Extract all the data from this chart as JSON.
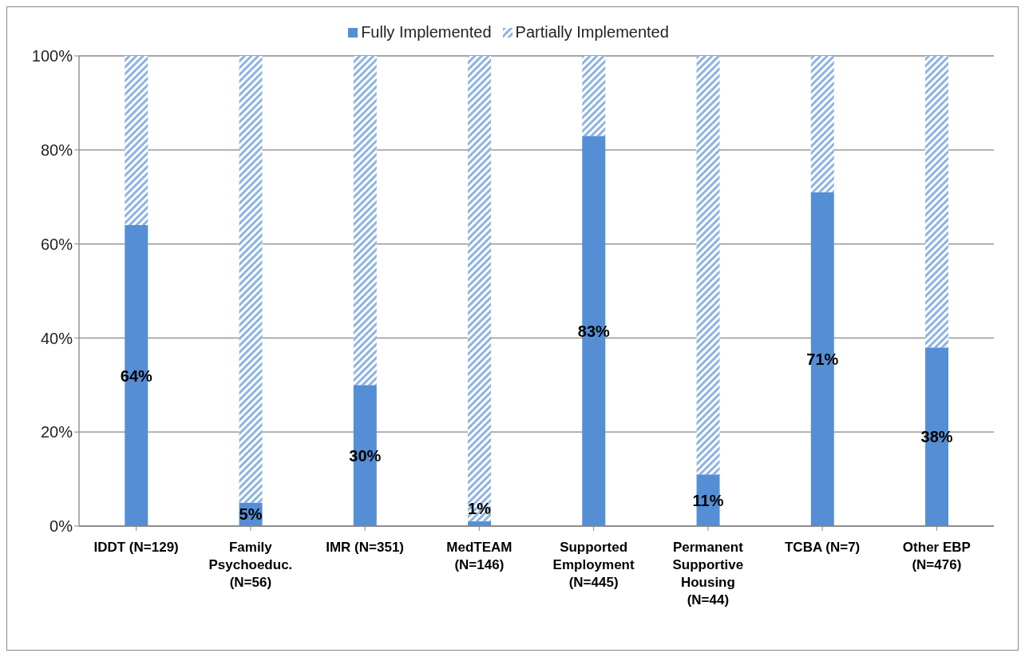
{
  "chart_data": {
    "type": "bar",
    "stacked": true,
    "categories": [
      "IDDT (N=129)",
      "Family Psychoeduc. (N=56)",
      "IMR (N=351)",
      "MedTEAM (N=146)",
      "Supported Employment (N=445)",
      "Permanent Supportive Housing (N=44)",
      "TCBA (N=7)",
      "Other EBP (N=476)"
    ],
    "series": [
      {
        "name": "Fully Implemented",
        "color": "#558ed5",
        "values": [
          64,
          5,
          30,
          1,
          83,
          11,
          71,
          38
        ],
        "value_labels": [
          "64%",
          "5%",
          "30%",
          "1%",
          "83%",
          "11%",
          "71%",
          "38%"
        ]
      },
      {
        "name": "Partially Implemented",
        "color": "#8db3e2",
        "values": [
          36,
          95,
          70,
          99,
          17,
          89,
          29,
          62
        ]
      }
    ],
    "ylim": [
      0,
      100
    ],
    "yticks": [
      {
        "value": 0,
        "label": "0%"
      },
      {
        "value": 20,
        "label": "20%"
      },
      {
        "value": 40,
        "label": "40%"
      },
      {
        "value": 60,
        "label": "60%"
      },
      {
        "value": 80,
        "label": "80%"
      },
      {
        "value": 100,
        "label": "100%"
      }
    ],
    "grid": "y",
    "legend": "top"
  }
}
